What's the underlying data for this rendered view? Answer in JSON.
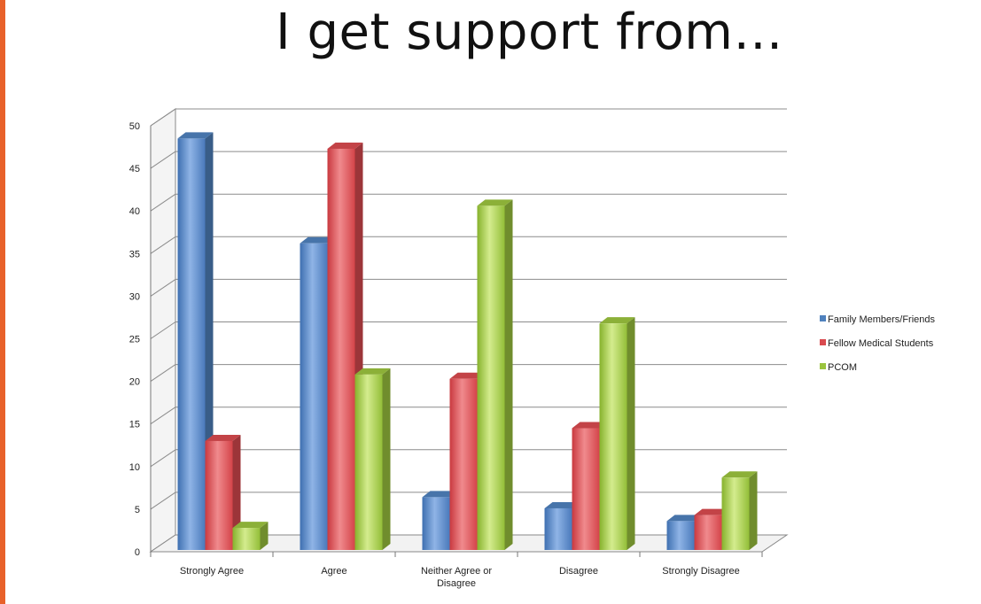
{
  "chart_data": {
    "type": "bar",
    "title": "I get support from…",
    "categories": [
      [
        "Strongly Agree"
      ],
      [
        "Agree"
      ],
      [
        "Neither Agree or",
        "Disagree"
      ],
      [
        "Disagree"
      ],
      [
        "Strongly Disagree"
      ]
    ],
    "series": [
      {
        "name": "Family Members/Friends",
        "values": [
          48.5,
          36.2,
          6.4,
          5.1,
          3.6
        ],
        "color": "#4f81bd"
      },
      {
        "name": "Fellow Medical Students",
        "values": [
          13,
          47.3,
          20.3,
          14.5,
          4.3
        ],
        "color": "#d94a4f"
      },
      {
        "name": "PCOM",
        "values": [
          2.8,
          20.8,
          40.6,
          26.8,
          8.7
        ],
        "color": "#9bc43e"
      }
    ],
    "yticks": [
      0,
      5,
      10,
      15,
      20,
      25,
      30,
      35,
      40,
      45,
      50
    ],
    "ylim": [
      0,
      50
    ],
    "grid": true,
    "legend_position": "right"
  }
}
